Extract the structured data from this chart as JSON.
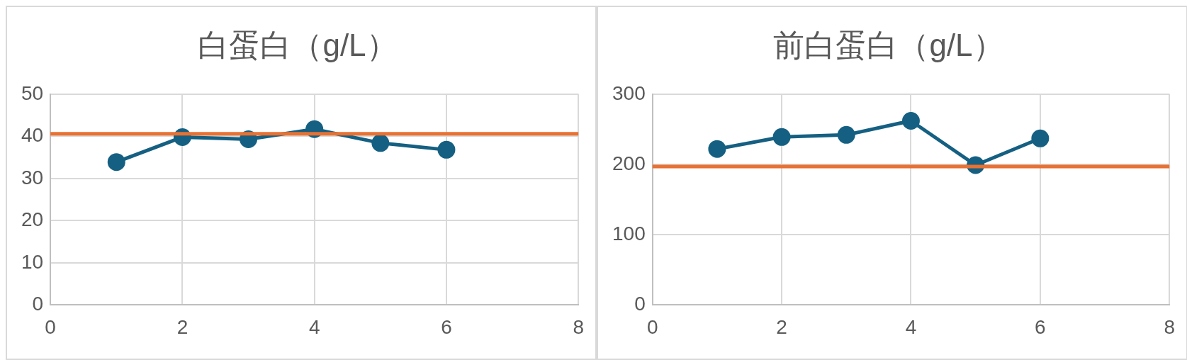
{
  "chart_data": [
    {
      "type": "line",
      "title": "白蛋白（g/L）",
      "xlim": [
        0,
        8
      ],
      "xticks": [
        0,
        2,
        4,
        6,
        8
      ],
      "ylim": [
        0,
        50
      ],
      "yticks": [
        0,
        10,
        20,
        30,
        40,
        50
      ],
      "grid": true,
      "marker": "circle",
      "line_style": "solid",
      "series": [
        {
          "color": "#156082",
          "x": [
            1,
            2,
            3,
            4,
            5,
            6
          ],
          "values": [
            33.9,
            39.8,
            39.3,
            41.7,
            38.4,
            36.8
          ]
        }
      ],
      "ref_lines": [
        {
          "axis": "y",
          "value": 40.6,
          "color": "#e97132"
        }
      ]
    },
    {
      "type": "line",
      "title": "前白蛋白（g/L）",
      "xlim": [
        0,
        8
      ],
      "xticks": [
        0,
        2,
        4,
        6,
        8
      ],
      "ylim": [
        0,
        300
      ],
      "yticks": [
        0,
        100,
        200,
        300
      ],
      "grid": true,
      "marker": "circle",
      "line_style": "solid",
      "series": [
        {
          "color": "#156082",
          "x": [
            1,
            2,
            3,
            4,
            5,
            6
          ],
          "values": [
            222,
            239,
            242,
            262,
            199,
            237
          ]
        }
      ],
      "ref_lines": [
        {
          "axis": "y",
          "value": 197,
          "color": "#e97132"
        }
      ]
    }
  ]
}
